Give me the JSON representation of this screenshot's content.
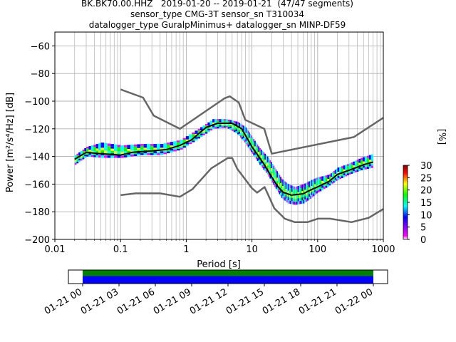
{
  "chart_data": {
    "type": "heatmap",
    "title_lines": [
      "BK.BK70.00.HHZ   2019-01-20 -- 2019-01-21  (47/47 segments)",
      "sensor_type CMG-3T sensor_sn T310034",
      "datalogger_type GuralpMinimus+ datalogger_sn MINP-DF59"
    ],
    "xlabel": "Period [s]",
    "ylabel": "Power [m²/s⁴/Hz] [dB]",
    "x_scale": "log",
    "xlim": [
      0.01,
      1000
    ],
    "ylim": [
      -200,
      -50
    ],
    "x_ticks": [
      "0.01",
      "0.1",
      "1",
      "10",
      "100",
      "1000"
    ],
    "x_tick_values": [
      0.01,
      0.1,
      1,
      10,
      100,
      1000
    ],
    "y_ticks": [
      "−60",
      "−80",
      "−100",
      "−120",
      "−140",
      "−160",
      "−180",
      "−200"
    ],
    "y_tick_values": [
      -60,
      -80,
      -100,
      -120,
      -140,
      -160,
      -180,
      -200
    ],
    "grid": true,
    "colorbar": {
      "label": "[%]",
      "ticks": [
        "0",
        "5",
        "10",
        "15",
        "20",
        "25",
        "30"
      ],
      "range": [
        0,
        30
      ],
      "colors": [
        "#ffffff",
        "#ff00ff",
        "#0000ff",
        "#00ffff",
        "#00ff00",
        "#ffff00",
        "#ff0000",
        "#800000"
      ]
    },
    "series": [
      {
        "name": "NHNM",
        "color": "#666666",
        "points": [
          [
            0.1,
            -91.5
          ],
          [
            0.22,
            -97.4
          ],
          [
            0.32,
            -110.5
          ],
          [
            0.8,
            -120
          ],
          [
            3.8,
            -98
          ],
          [
            4.6,
            -96.5
          ],
          [
            6.3,
            -101
          ],
          [
            7.9,
            -113.5
          ],
          [
            15.4,
            -120
          ],
          [
            20,
            -138
          ],
          [
            354.8,
            -126
          ],
          [
            1000,
            -112
          ]
        ]
      },
      {
        "name": "NLNM",
        "color": "#666666",
        "points": [
          [
            0.1,
            -168
          ],
          [
            0.17,
            -166.7
          ],
          [
            0.4,
            -166.7
          ],
          [
            0.8,
            -169.2
          ],
          [
            1.24,
            -163.7
          ],
          [
            2.4,
            -148.6
          ],
          [
            4.3,
            -141.1
          ],
          [
            5,
            -141.1
          ],
          [
            6,
            -149
          ],
          [
            10,
            -163
          ],
          [
            12,
            -166.2
          ],
          [
            15.6,
            -162.1
          ],
          [
            21.9,
            -177.5
          ],
          [
            31.6,
            -185
          ],
          [
            45,
            -187.5
          ],
          [
            70,
            -187.5
          ],
          [
            101,
            -185
          ],
          [
            154,
            -185
          ],
          [
            328,
            -187.5
          ],
          [
            600,
            -184.4
          ],
          [
            1000,
            -178
          ]
        ]
      },
      {
        "name": "mode",
        "color": "#000000",
        "points": [
          [
            0.02,
            -142
          ],
          [
            0.03,
            -137
          ],
          [
            0.05,
            -138
          ],
          [
            0.1,
            -139
          ],
          [
            0.15,
            -137
          ],
          [
            0.3,
            -136
          ],
          [
            0.5,
            -135
          ],
          [
            0.8,
            -132
          ],
          [
            1.2,
            -128
          ],
          [
            2,
            -119
          ],
          [
            3,
            -116
          ],
          [
            5,
            -116
          ],
          [
            7,
            -120
          ],
          [
            10,
            -133
          ],
          [
            15,
            -145
          ],
          [
            20,
            -155
          ],
          [
            25,
            -162
          ],
          [
            30,
            -166
          ],
          [
            40,
            -168
          ],
          [
            60,
            -167
          ],
          [
            80,
            -164
          ],
          [
            100,
            -162
          ],
          [
            150,
            -158
          ],
          [
            200,
            -153
          ],
          [
            300,
            -150
          ],
          [
            500,
            -146
          ],
          [
            700,
            -144
          ]
        ]
      }
    ],
    "psd_band": [
      [
        0.02,
        -146,
        -139
      ],
      [
        0.03,
        -140,
        -133
      ],
      [
        0.05,
        -141,
        -130
      ],
      [
        0.1,
        -141,
        -132
      ],
      [
        0.2,
        -139,
        -131
      ],
      [
        0.4,
        -139,
        -131
      ],
      [
        0.8,
        -135,
        -128
      ],
      [
        1.5,
        -127,
        -120
      ],
      [
        2.5,
        -120,
        -113
      ],
      [
        4,
        -119,
        -113
      ],
      [
        6,
        -124,
        -115
      ],
      [
        8,
        -131,
        -119
      ],
      [
        10,
        -138,
        -126
      ],
      [
        13,
        -146,
        -134
      ],
      [
        17,
        -153,
        -140
      ],
      [
        22,
        -162,
        -148
      ],
      [
        28,
        -170,
        -156
      ],
      [
        35,
        -174,
        -160
      ],
      [
        45,
        -175,
        -162
      ],
      [
        60,
        -174,
        -160
      ],
      [
        80,
        -170,
        -157
      ],
      [
        100,
        -166,
        -155
      ],
      [
        150,
        -161,
        -153
      ],
      [
        200,
        -157,
        -148
      ],
      [
        300,
        -153,
        -145
      ],
      [
        450,
        -150,
        -141
      ],
      [
        700,
        -148,
        -138
      ]
    ],
    "timeline": {
      "tick_labels": [
        "01-21 00",
        "01-21 03",
        "01-21 06",
        "01-21 09",
        "01-21 12",
        "01-21 15",
        "01-21 18",
        "01-21 21",
        "01-22 00"
      ],
      "bar_colors": [
        "#008000",
        "#0000ff"
      ],
      "coverage": [
        0,
        1
      ]
    }
  }
}
